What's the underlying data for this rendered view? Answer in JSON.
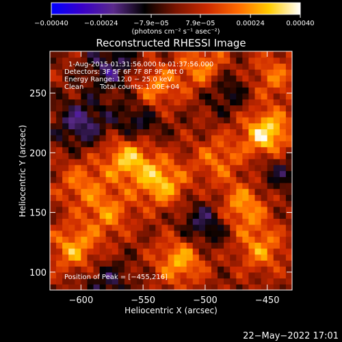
{
  "chart_data": {
    "type": "heatmap",
    "title": "Reconstructed RHESSI Image",
    "xlabel": "Heliocentric X (arcsec)",
    "ylabel": "Heliocentric Y (arcsec)",
    "x_range": [
      -625,
      -430
    ],
    "y_range": [
      85,
      285
    ],
    "x_ticks": [
      -600,
      -550,
      -500,
      -450
    ],
    "y_ticks": [
      100,
      150,
      200,
      250
    ],
    "x_tick_labels": [
      "−600",
      "−550",
      "−500",
      "−450"
    ],
    "y_tick_labels": [
      "100",
      "150",
      "200",
      "250"
    ],
    "colorbar": {
      "range": [
        -0.0004,
        0.0004
      ],
      "tick_values": [
        -0.0004,
        -0.00024,
        -7.9e-05,
        7.9e-05,
        0.00024,
        0.0004
      ],
      "tick_labels": [
        "−0.00040",
        "−0.00024",
        "−7.9e−05",
        "7.9e−05",
        "0.00024",
        "0.00040"
      ],
      "unit_text": "(photons cm⁻² s⁻¹ asec⁻²)",
      "stops": [
        "#0000ff",
        "#3a00c8",
        "#5a2a8a",
        "#000000",
        "#7a1400",
        "#cc2a00",
        "#ff6a00",
        "#ffcc00",
        "#ffffff"
      ]
    },
    "annotations": {
      "time_range": "1-Aug-2015 01:31:56.000 to 01:37:56.000",
      "detectors": "Detectors: 3F 5F 6F 7F 8F 9F, Att 0",
      "energy": "Energy Range: 12.0 − 25.0 keV",
      "method": "Clean",
      "counts": "Total counts: 1.00E+04",
      "peak": "Position of Peak = [−455,216]"
    },
    "sources": [
      {
        "x": -450,
        "y": 216,
        "amp": 1.0
      },
      {
        "x": -562,
        "y": 196,
        "amp": 0.85
      },
      {
        "x": -535,
        "y": 175,
        "amp": 0.8
      },
      {
        "x": -500,
        "y": 270,
        "amp": 0.7
      },
      {
        "x": -540,
        "y": 255,
        "amp": 0.6
      },
      {
        "x": -605,
        "y": 120,
        "amp": 0.7
      },
      {
        "x": -470,
        "y": 155,
        "amp": 0.7
      },
      {
        "x": -520,
        "y": 110,
        "amp": 0.75
      },
      {
        "x": -455,
        "y": 120,
        "amp": 0.6
      },
      {
        "x": -600,
        "y": 175,
        "amp": 0.5
      },
      {
        "x": -578,
        "y": 150,
        "amp": 0.55
      },
      {
        "x": -490,
        "y": 195,
        "amp": 0.5
      },
      {
        "x": -445,
        "y": 265,
        "amp": 0.5
      },
      {
        "x": -575,
        "y": 272,
        "amp": -0.55
      },
      {
        "x": -600,
        "y": 225,
        "amp": -0.6
      },
      {
        "x": -555,
        "y": 225,
        "amp": -0.5
      },
      {
        "x": -485,
        "y": 255,
        "amp": -0.5
      },
      {
        "x": -500,
        "y": 140,
        "amp": -0.55
      },
      {
        "x": -580,
        "y": 92,
        "amp": -0.4
      },
      {
        "x": -440,
        "y": 185,
        "amp": -0.4
      }
    ]
  },
  "footer": {
    "timestamp": "22−May−2022 17:01"
  }
}
